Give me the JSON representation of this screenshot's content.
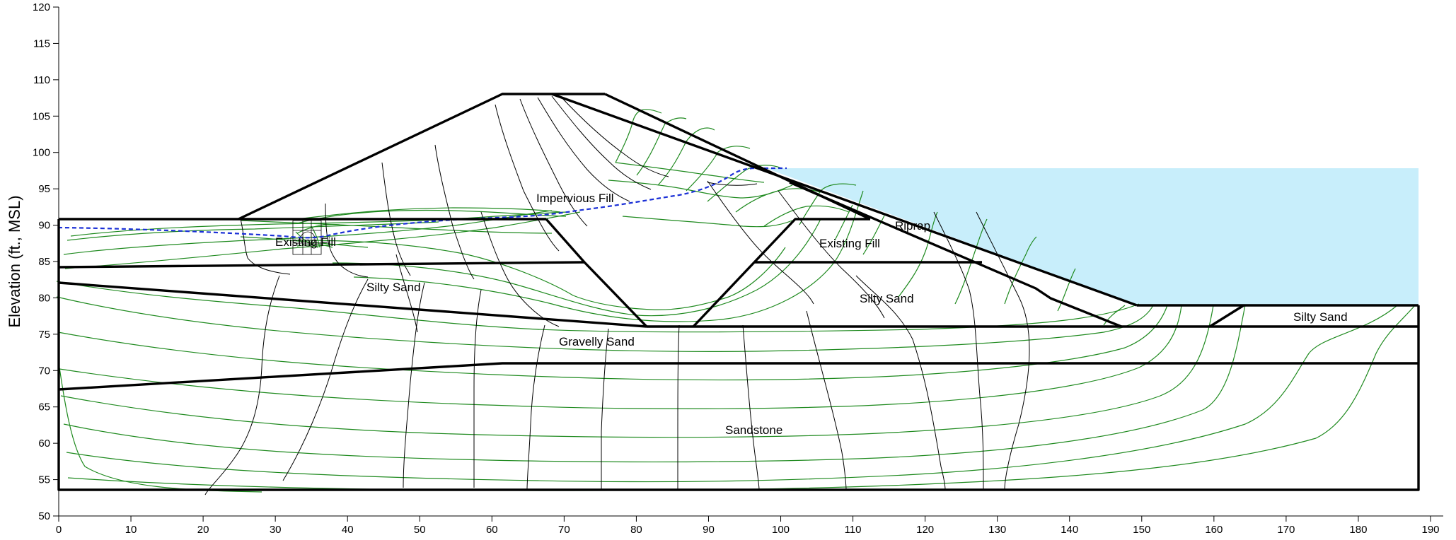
{
  "figure": {
    "y_axis_title": "Elevation (ft., MSL)",
    "x_ticks": [
      "0",
      "10",
      "20",
      "30",
      "40",
      "50",
      "60",
      "70",
      "80",
      "90",
      "100",
      "110",
      "120",
      "130",
      "140",
      "150",
      "160",
      "170",
      "180",
      "190"
    ],
    "y_ticks": [
      "50",
      "55",
      "60",
      "65",
      "70",
      "75",
      "80",
      "85",
      "90",
      "95",
      "100",
      "105",
      "110",
      "115",
      "120"
    ],
    "x_range": [
      0,
      190
    ],
    "y_range": [
      50,
      120
    ],
    "regions": [
      {
        "key": "impervious-fill",
        "label": "Impervious Fill"
      },
      {
        "key": "existing-fill-left",
        "label": "Existing Fill"
      },
      {
        "key": "existing-fill-right",
        "label": "Existing Fill"
      },
      {
        "key": "riprap",
        "label": "Riprap"
      },
      {
        "key": "silty-sand-left",
        "label": "Silty Sand"
      },
      {
        "key": "silty-sand-middle",
        "label": "Silty Sand"
      },
      {
        "key": "silty-sand-right",
        "label": "Silty Sand"
      },
      {
        "key": "gravelly-sand",
        "label": "Gravelly Sand"
      },
      {
        "key": "sandstone",
        "label": "Sandstone"
      }
    ],
    "colors": {
      "reservoir_water": "#c8eefb",
      "phreatic_line": "#1a2fd6",
      "equipotential_lines": "#1f8a1f",
      "flow_lines": "#000000",
      "material_boundaries": "#000000"
    }
  }
}
